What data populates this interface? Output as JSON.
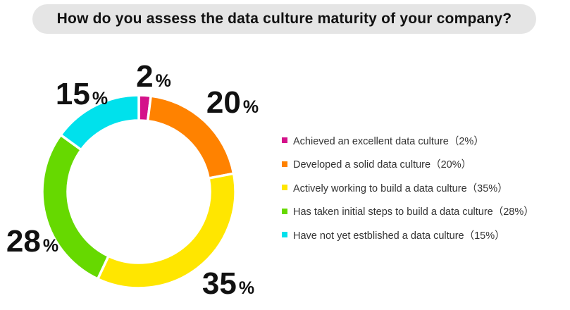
{
  "chart_data": {
    "type": "pie",
    "title": "How do you assess the data culture maturity of your company?",
    "series": [
      {
        "label": "Achieved an excellent data culture（2%）",
        "value": 2,
        "display_number": "2",
        "display_unit": "%",
        "color": "#d4128a"
      },
      {
        "label": "Developed a solid data culture（20%）",
        "value": 20,
        "display_number": "20",
        "display_unit": "%",
        "color": "#ff8200"
      },
      {
        "label": "Actively working to build a data culture（35%）",
        "value": 35,
        "display_number": "35",
        "display_unit": "%",
        "color": "#ffe600"
      },
      {
        "label": "Has taken initial steps to build a data culture（28%）",
        "value": 28,
        "display_number": "28",
        "display_unit": "%",
        "color": "#66d900"
      },
      {
        "label": "Have not yet estblished a data culture（15%）",
        "value": 15,
        "display_number": "15",
        "display_unit": "%",
        "color": "#00e1ec"
      }
    ],
    "legend_position": "right",
    "donut": true
  }
}
